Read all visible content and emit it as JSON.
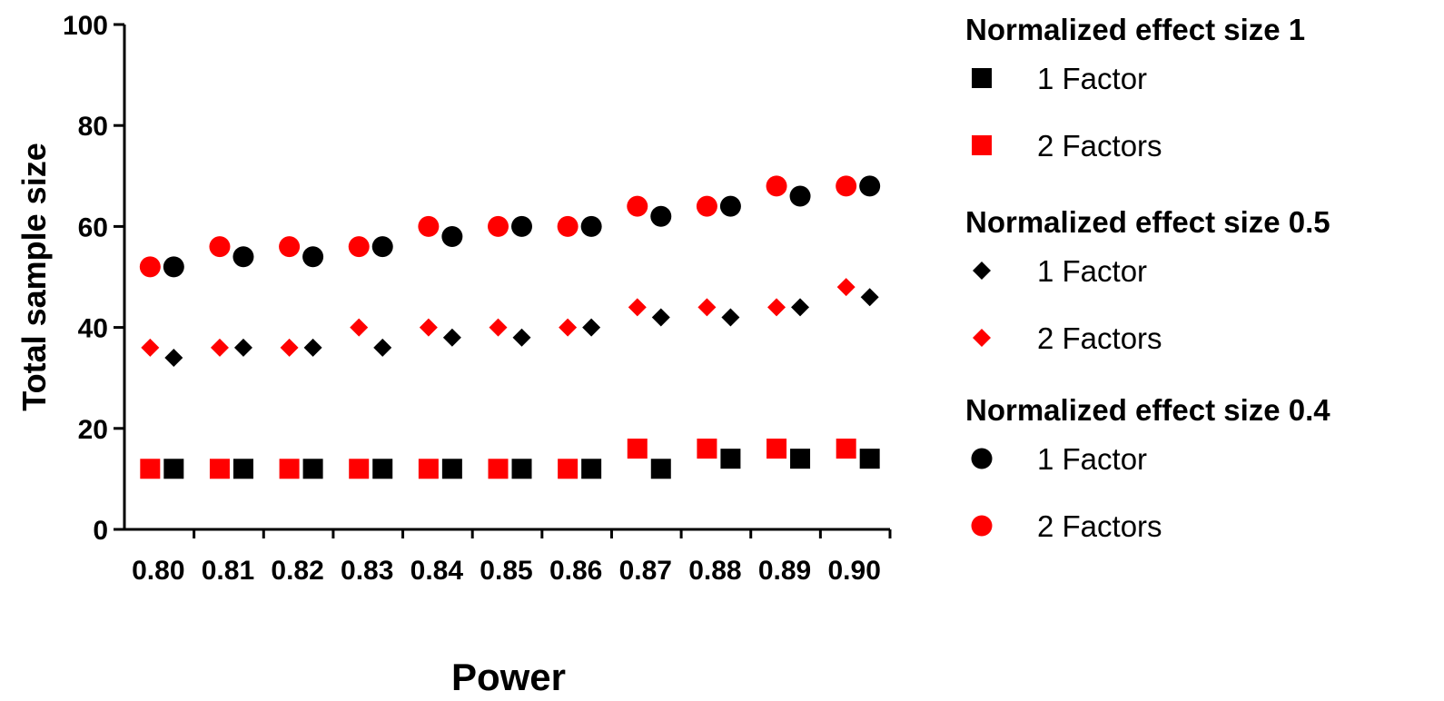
{
  "chart_data": {
    "type": "scatter",
    "xlabel": "Power",
    "ylabel": "Total sample size",
    "categories": [
      "0.80",
      "0.81",
      "0.82",
      "0.83",
      "0.84",
      "0.85",
      "0.86",
      "0.87",
      "0.88",
      "0.89",
      "0.90"
    ],
    "ylim": [
      0,
      100
    ],
    "yticks": [
      "0",
      "20",
      "40",
      "60",
      "80",
      "100"
    ],
    "grid": false,
    "legend_position": "right",
    "groups": [
      {
        "heading": "Normalized effect size 1",
        "series": [
          {
            "name": "1 Factor",
            "marker": "square",
            "color": "#000000",
            "values": [
              12,
              12,
              12,
              12,
              12,
              12,
              12,
              12,
              14,
              14,
              14
            ]
          },
          {
            "name": "2 Factors",
            "marker": "square",
            "color": "#ff0000",
            "values": [
              12,
              12,
              12,
              12,
              12,
              12,
              12,
              16,
              16,
              16,
              16
            ]
          }
        ]
      },
      {
        "heading": "Normalized effect size 0.5",
        "series": [
          {
            "name": "1 Factor",
            "marker": "diamond",
            "color": "#000000",
            "values": [
              34,
              36,
              36,
              36,
              38,
              38,
              40,
              42,
              42,
              44,
              46
            ]
          },
          {
            "name": "2 Factors",
            "marker": "diamond",
            "color": "#ff0000",
            "values": [
              36,
              36,
              36,
              40,
              40,
              40,
              40,
              44,
              44,
              44,
              48
            ]
          }
        ]
      },
      {
        "heading": "Normalized effect size 0.4",
        "series": [
          {
            "name": "1 Factor",
            "marker": "circle",
            "color": "#000000",
            "values": [
              52,
              54,
              54,
              56,
              58,
              60,
              60,
              62,
              64,
              66,
              68
            ]
          },
          {
            "name": "2 Factors",
            "marker": "circle",
            "color": "#ff0000",
            "values": [
              52,
              56,
              56,
              56,
              60,
              60,
              60,
              64,
              64,
              68,
              68
            ]
          }
        ]
      }
    ]
  }
}
